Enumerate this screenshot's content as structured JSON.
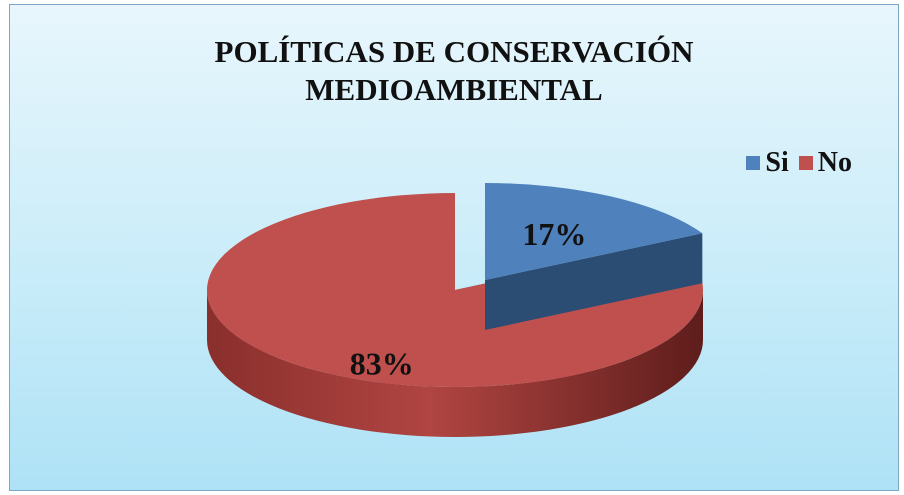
{
  "chart_data": {
    "type": "pie",
    "title": [
      "POLÍTICAS DE CONSERVACIÓN",
      "MEDIOAMBIENTAL"
    ],
    "categories": [
      "Si",
      "No"
    ],
    "values": [
      17,
      83
    ],
    "data_labels": [
      "17%",
      "83%"
    ],
    "colors": [
      "#4f81bd",
      "#c0504d"
    ],
    "exploded": "Si",
    "legend_position": "top-right",
    "style": "3d"
  }
}
